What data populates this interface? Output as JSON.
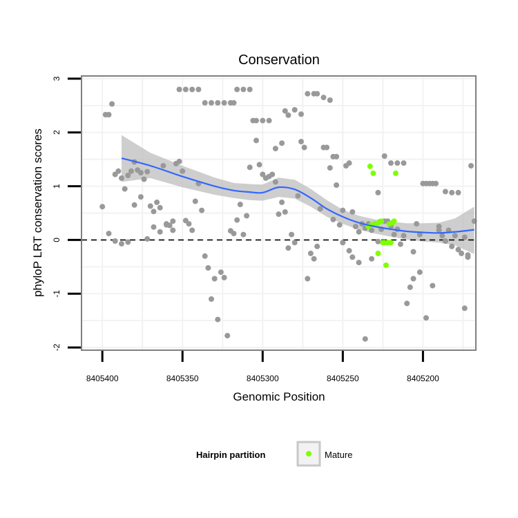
{
  "chart_data": {
    "type": "scatter",
    "title": "Conservation",
    "xlabel": "Genomic Position",
    "ylabel": "phyloP LRT conservation scores",
    "x_reversed": true,
    "xlim": [
      8405413,
      8405167
    ],
    "ylim": [
      -2.05,
      3.05
    ],
    "x_ticks": [
      8405400,
      8405350,
      8405300,
      8405250,
      8405200
    ],
    "x_tick_labels": [
      "8405400",
      "8405350",
      "8405300",
      "8405250",
      "8405200"
    ],
    "y_ticks": [
      -2,
      -1,
      0,
      1,
      2,
      3
    ],
    "y_tick_labels": [
      "-2",
      "-1",
      "0",
      "1",
      "2",
      "3"
    ],
    "reference_line": {
      "y": 0,
      "style": "dashed"
    },
    "legend": {
      "title": "Hairpin partition",
      "entries": [
        {
          "label": "Mature",
          "color": "#7FFF00"
        }
      ]
    },
    "colors": {
      "other": "#999999",
      "mature": "#7FFF00",
      "smooth": "#3366FF",
      "band": "#BDBDBD"
    },
    "series": [
      {
        "name": "Other",
        "points": [
          [
            8405398,
            2.33
          ],
          [
            8405396,
            2.33
          ],
          [
            8405394,
            2.53
          ],
          [
            8405392,
            1.22
          ],
          [
            8405390,
            1.28
          ],
          [
            8405388,
            1.15
          ],
          [
            8405386,
            0.95
          ],
          [
            8405384,
            1.2
          ],
          [
            8405382,
            1.28
          ],
          [
            8405380,
            1.45
          ],
          [
            8405378,
            1.3
          ],
          [
            8405376,
            1.25
          ],
          [
            8405374,
            1.13
          ],
          [
            8405372,
            1.27
          ],
          [
            8405370,
            0.63
          ],
          [
            8405368,
            0.53
          ],
          [
            8405366,
            0.7
          ],
          [
            8405364,
            0.6
          ],
          [
            8405362,
            1.38
          ],
          [
            8405360,
            0.3
          ],
          [
            8405358,
            0.27
          ],
          [
            8405356,
            0.18
          ],
          [
            8405354,
            1.42
          ],
          [
            8405352,
            1.46
          ],
          [
            8405350,
            1.28
          ],
          [
            8405348,
            0.36
          ],
          [
            8405346,
            0.3
          ],
          [
            8405344,
            0.18
          ],
          [
            8405342,
            0.72
          ],
          [
            8405340,
            1.05
          ],
          [
            8405338,
            0.55
          ],
          [
            8405336,
            -0.3
          ],
          [
            8405334,
            -0.52
          ],
          [
            8405332,
            -1.1
          ],
          [
            8405330,
            -0.72
          ],
          [
            8405328,
            -1.48
          ],
          [
            8405326,
            -0.6
          ],
          [
            8405324,
            -0.7
          ],
          [
            8405322,
            -1.78
          ],
          [
            8405320,
            0.17
          ],
          [
            8405318,
            0.12
          ],
          [
            8405316,
            0.37
          ],
          [
            8405314,
            0.66
          ],
          [
            8405312,
            0.1
          ],
          [
            8405310,
            0.45
          ],
          [
            8405308,
            1.35
          ],
          [
            8405306,
            2.22
          ],
          [
            8405304,
            2.22
          ],
          [
            8405302,
            1.4
          ],
          [
            8405300,
            1.22
          ],
          [
            8405298,
            1.15
          ],
          [
            8405296,
            1.18
          ],
          [
            8405294,
            1.22
          ],
          [
            8405292,
            1.08
          ],
          [
            8405290,
            0.48
          ],
          [
            8405288,
            0.7
          ],
          [
            8405286,
            0.52
          ],
          [
            8405284,
            -0.15
          ],
          [
            8405282,
            0.1
          ],
          [
            8405280,
            -0.05
          ],
          [
            8405278,
            0.82
          ],
          [
            8405276,
            1.83
          ],
          [
            8405274,
            1.72
          ],
          [
            8405272,
            -0.72
          ],
          [
            8405270,
            -0.25
          ],
          [
            8405268,
            -0.35
          ],
          [
            8405266,
            -0.12
          ],
          [
            8405264,
            0.58
          ],
          [
            8405262,
            1.72
          ],
          [
            8405260,
            1.72
          ],
          [
            8405258,
            1.34
          ],
          [
            8405256,
            0.38
          ],
          [
            8405254,
            1.02
          ],
          [
            8405252,
            0.28
          ],
          [
            8405250,
            -0.05
          ],
          [
            8405248,
            1.38
          ],
          [
            8405246,
            1.43
          ],
          [
            8405244,
            0.52
          ],
          [
            8405242,
            0.25
          ],
          [
            8405240,
            0.15
          ],
          [
            8405238,
            0.3
          ],
          [
            8405236,
            0.22
          ],
          [
            8405234,
            0.3
          ],
          [
            8405232,
            0.18
          ],
          [
            8405230,
            0.3
          ],
          [
            8405228,
            -0.03
          ],
          [
            8405226,
            0.2
          ],
          [
            8405224,
            0.35
          ],
          [
            8405222,
            0.35
          ],
          [
            8405220,
            0.25
          ],
          [
            8405218,
            0.1
          ],
          [
            8405216,
            0.2
          ],
          [
            8405214,
            -0.08
          ],
          [
            8405212,
            0.08
          ],
          [
            8405210,
            -1.18
          ],
          [
            8405208,
            -0.88
          ],
          [
            8405206,
            -0.72
          ],
          [
            8405204,
            0.3
          ],
          [
            8405202,
            0.1
          ],
          [
            8405200,
            1.05
          ],
          [
            8405198,
            1.05
          ],
          [
            8405196,
            1.05
          ],
          [
            8405194,
            1.05
          ],
          [
            8405192,
            1.05
          ],
          [
            8405190,
            0.25
          ],
          [
            8405188,
            0.08
          ],
          [
            8405186,
            -0.02
          ],
          [
            8405184,
            0.18
          ],
          [
            8405182,
            -0.12
          ],
          [
            8405180,
            0.08
          ],
          [
            8405178,
            -0.18
          ],
          [
            8405176,
            -0.25
          ],
          [
            8405174,
            0.05
          ],
          [
            8405172,
            -0.28
          ],
          [
            8405170,
            1.38
          ],
          [
            8405400,
            0.62
          ],
          [
            8405396,
            0.12
          ],
          [
            8405392,
            -0.02
          ],
          [
            8405388,
            -0.07
          ],
          [
            8405384,
            -0.04
          ],
          [
            8405380,
            0.65
          ],
          [
            8405376,
            0.8
          ],
          [
            8405372,
            0.02
          ],
          [
            8405368,
            0.24
          ],
          [
            8405364,
            0.15
          ],
          [
            8405360,
            0.28
          ],
          [
            8405356,
            0.35
          ],
          [
            8405352,
            2.8
          ],
          [
            8405348,
            2.8
          ],
          [
            8405344,
            2.8
          ],
          [
            8405340,
            2.8
          ],
          [
            8405336,
            2.55
          ],
          [
            8405332,
            2.55
          ],
          [
            8405328,
            2.55
          ],
          [
            8405324,
            2.55
          ],
          [
            8405320,
            2.55
          ],
          [
            8405318,
            2.55
          ],
          [
            8405316,
            2.8
          ],
          [
            8405312,
            2.8
          ],
          [
            8405308,
            2.8
          ],
          [
            8405304,
            1.85
          ],
          [
            8405300,
            2.22
          ],
          [
            8405296,
            2.22
          ],
          [
            8405292,
            1.7
          ],
          [
            8405288,
            1.8
          ],
          [
            8405286,
            2.4
          ],
          [
            8405284,
            2.32
          ],
          [
            8405280,
            2.42
          ],
          [
            8405276,
            2.34
          ],
          [
            8405272,
            2.72
          ],
          [
            8405268,
            2.72
          ],
          [
            8405266,
            2.72
          ],
          [
            8405262,
            2.65
          ],
          [
            8405258,
            2.6
          ],
          [
            8405256,
            1.55
          ],
          [
            8405254,
            1.55
          ],
          [
            8405250,
            0.55
          ],
          [
            8405246,
            -0.2
          ],
          [
            8405244,
            -0.32
          ],
          [
            8405240,
            -0.42
          ],
          [
            8405236,
            -1.84
          ],
          [
            8405232,
            -0.35
          ],
          [
            8405228,
            0.88
          ],
          [
            8405224,
            1.56
          ],
          [
            8405220,
            1.43
          ],
          [
            8405216,
            1.43
          ],
          [
            8405212,
            1.43
          ],
          [
            8405206,
            -0.22
          ],
          [
            8405202,
            -0.6
          ],
          [
            8405198,
            -1.45
          ],
          [
            8405194,
            -0.85
          ],
          [
            8405190,
            0.18
          ],
          [
            8405186,
            0.9
          ],
          [
            8405182,
            0.88
          ],
          [
            8405178,
            0.88
          ],
          [
            8405174,
            -1.27
          ],
          [
            8405172,
            -0.32
          ],
          [
            8405168,
            0.35
          ]
        ]
      },
      {
        "name": "Mature",
        "points": [
          [
            8405233,
            1.37
          ],
          [
            8405231,
            1.24
          ],
          [
            8405229,
            0.28
          ],
          [
            8405228,
            -0.25
          ],
          [
            8405227,
            0.34
          ],
          [
            8405226,
            0.35
          ],
          [
            8405225,
            -0.05
          ],
          [
            8405224,
            -0.05
          ],
          [
            8405223,
            -0.47
          ],
          [
            8405222,
            -0.05
          ],
          [
            8405221,
            0.3
          ],
          [
            8405220,
            -0.05
          ],
          [
            8405219,
            0.32
          ],
          [
            8405218,
            0.35
          ],
          [
            8405217,
            1.24
          ],
          [
            8405232,
            0.28
          ],
          [
            8405234,
            0.25
          ],
          [
            8405230,
            0.3
          ]
        ]
      }
    ],
    "smooth": {
      "x": [
        8405388,
        8405370,
        8405350,
        8405330,
        8405318,
        8405308,
        8405300,
        8405290,
        8405280,
        8405270,
        8405260,
        8405250,
        8405240,
        8405230,
        8405220,
        8405210,
        8405200,
        8405190,
        8405180,
        8405168
      ],
      "y": [
        1.52,
        1.38,
        1.18,
        1.0,
        0.92,
        0.89,
        0.88,
        0.98,
        0.94,
        0.78,
        0.58,
        0.43,
        0.32,
        0.25,
        0.2,
        0.16,
        0.14,
        0.13,
        0.15,
        0.19
      ],
      "lower": [
        1.08,
        1.15,
        0.98,
        0.84,
        0.78,
        0.74,
        0.73,
        0.8,
        0.77,
        0.62,
        0.43,
        0.3,
        0.19,
        0.12,
        0.06,
        0.01,
        -0.03,
        -0.05,
        -0.1,
        -0.26
      ],
      "upper": [
        1.95,
        1.62,
        1.38,
        1.16,
        1.06,
        1.04,
        1.03,
        1.16,
        1.12,
        0.95,
        0.74,
        0.56,
        0.45,
        0.38,
        0.34,
        0.31,
        0.31,
        0.32,
        0.4,
        0.62
      ]
    }
  }
}
